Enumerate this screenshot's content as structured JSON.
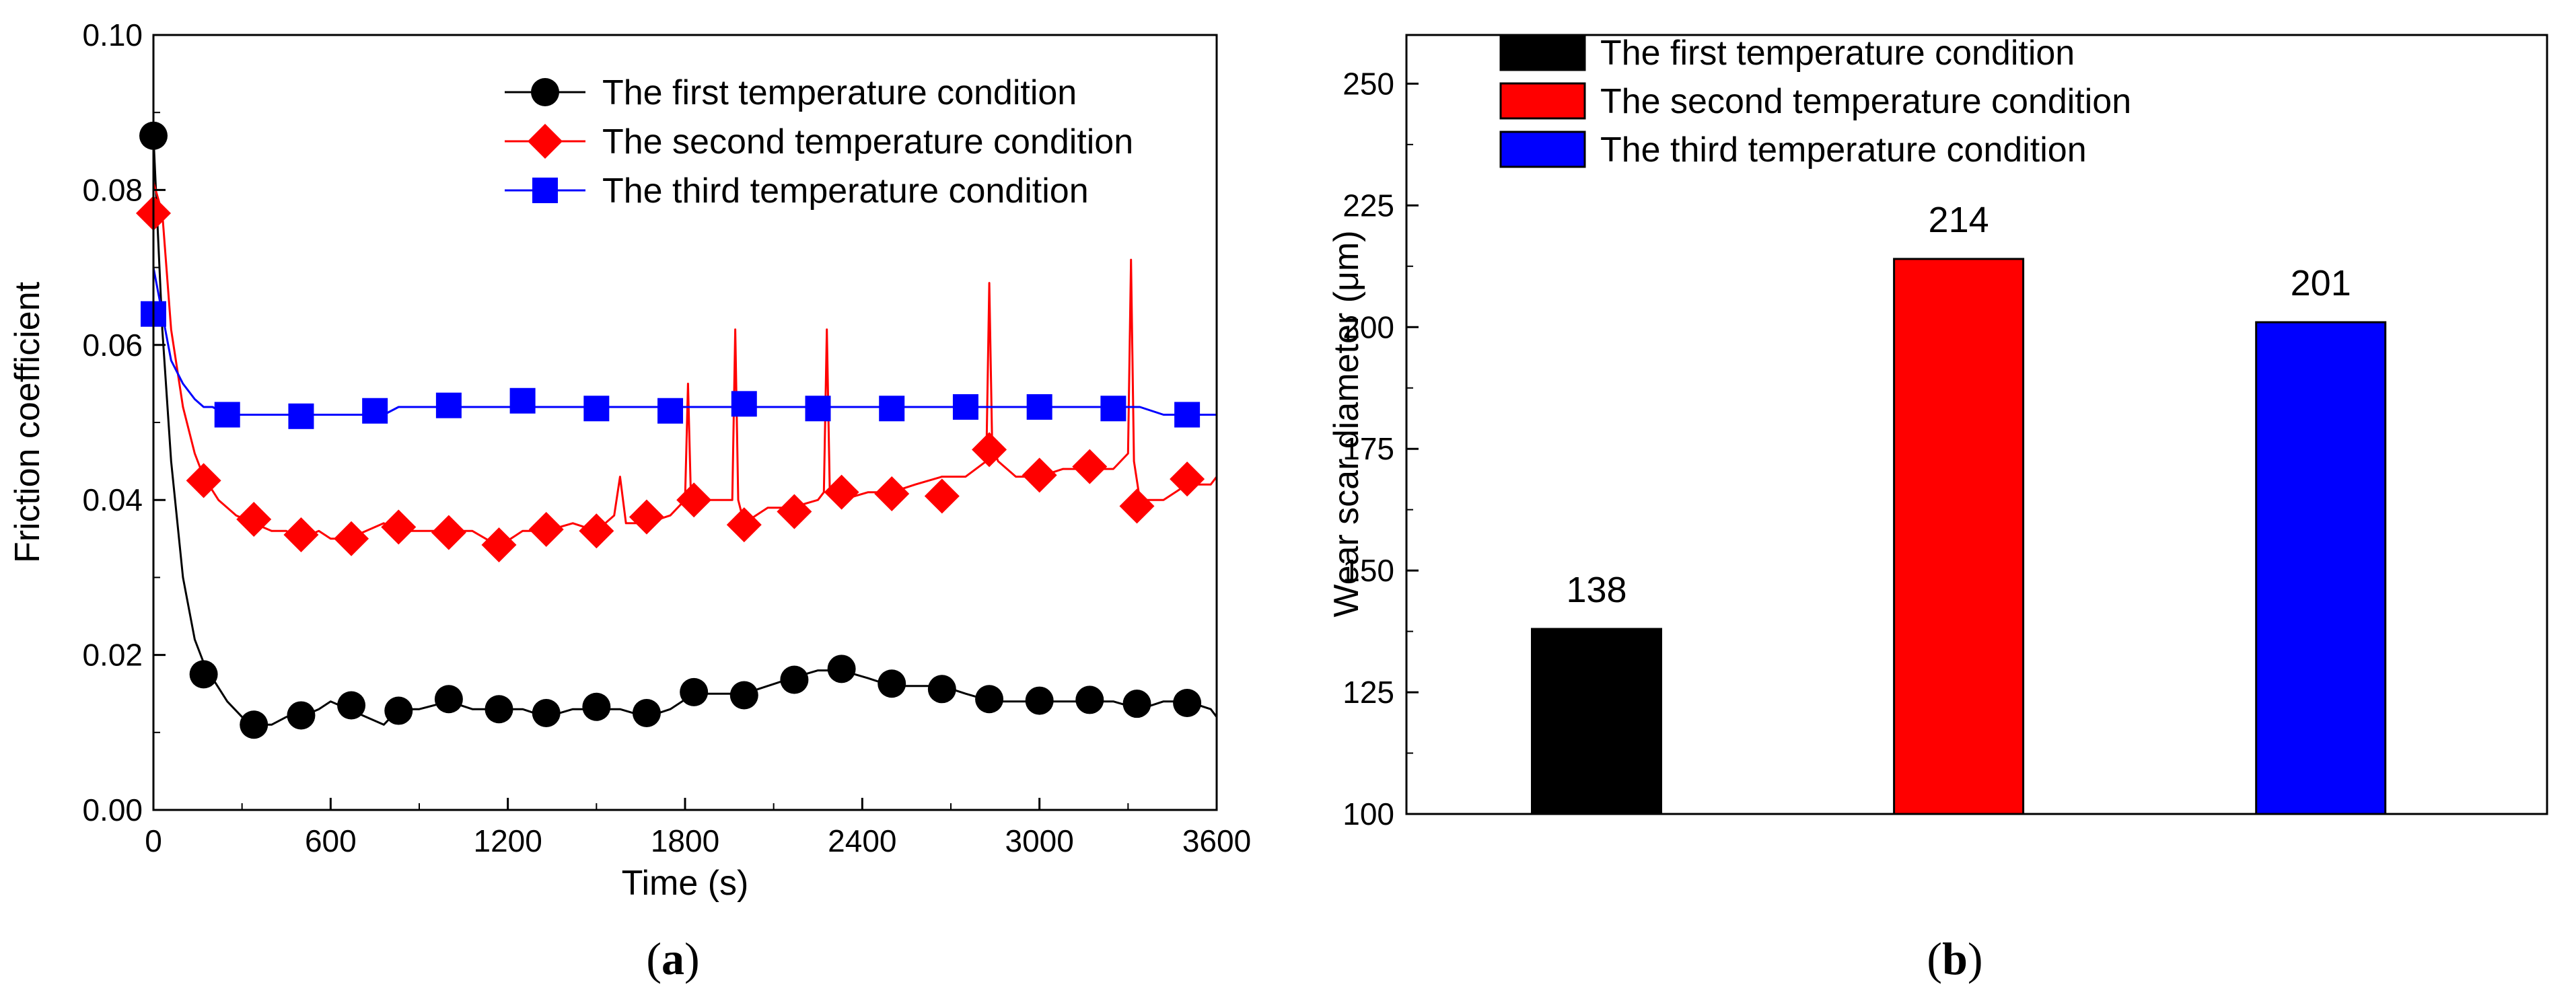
{
  "chart_data": [
    {
      "type": "line",
      "panel_label": "a",
      "xlabel": "Time (s)",
      "ylabel": "Friction coefficient",
      "xlim": [
        0,
        3600
      ],
      "ylim": [
        0.0,
        0.1
      ],
      "xticks": [
        "0",
        "600",
        "1200",
        "1800",
        "2400",
        "3000",
        "3600"
      ],
      "yticks": [
        "0.00",
        "0.02",
        "0.04",
        "0.06",
        "0.08",
        "0.10"
      ],
      "legend_position": "top-right",
      "series": [
        {
          "name": "The first temperature condition",
          "color": "#000000",
          "marker": "circle",
          "x": [
            0,
            30,
            60,
            100,
            140,
            170,
            200,
            250,
            300,
            340,
            400,
            450,
            500,
            560,
            600,
            660,
            720,
            780,
            830,
            900,
            1000,
            1080,
            1170,
            1250,
            1330,
            1420,
            1500,
            1580,
            1670,
            1750,
            1830,
            1900,
            2000,
            2080,
            2160,
            2250,
            2330,
            2420,
            2500,
            2580,
            2670,
            2750,
            2840,
            2920,
            3000,
            3080,
            3170,
            3250,
            3340,
            3420,
            3500,
            3580,
            3600
          ],
          "y": [
            0.087,
            0.062,
            0.045,
            0.03,
            0.022,
            0.019,
            0.017,
            0.014,
            0.012,
            0.011,
            0.011,
            0.012,
            0.012,
            0.013,
            0.014,
            0.013,
            0.012,
            0.011,
            0.013,
            0.013,
            0.014,
            0.013,
            0.013,
            0.013,
            0.012,
            0.013,
            0.013,
            0.013,
            0.012,
            0.013,
            0.015,
            0.015,
            0.015,
            0.016,
            0.017,
            0.018,
            0.018,
            0.017,
            0.016,
            0.016,
            0.016,
            0.015,
            0.014,
            0.014,
            0.014,
            0.014,
            0.014,
            0.014,
            0.013,
            0.014,
            0.014,
            0.013,
            0.012
          ],
          "marker_x": [
            0,
            170,
            340,
            500,
            670,
            830,
            1000,
            1170,
            1330,
            1500,
            1670,
            1830,
            2000,
            2170,
            2330,
            2500,
            2670,
            2830,
            3000,
            3170,
            3330,
            3500
          ],
          "marker_y": [
            0.087,
            0.0175,
            0.011,
            0.0122,
            0.0135,
            0.0128,
            0.0143,
            0.013,
            0.0125,
            0.0133,
            0.0125,
            0.0152,
            0.0148,
            0.0168,
            0.0182,
            0.0163,
            0.0156,
            0.0143,
            0.0141,
            0.0142,
            0.0137,
            0.0138
          ]
        },
        {
          "name": "The second temperature condition",
          "color": "#ff0000",
          "marker": "diamond",
          "x": [
            0,
            30,
            60,
            100,
            140,
            170,
            220,
            280,
            340,
            400,
            450,
            500,
            560,
            600,
            660,
            720,
            780,
            830,
            900,
            1000,
            1080,
            1170,
            1250,
            1330,
            1420,
            1500,
            1560,
            1580,
            1600,
            1670,
            1750,
            1800,
            1810,
            1820,
            1830,
            1900,
            1960,
            1970,
            1980,
            2000,
            2080,
            2160,
            2250,
            2270,
            2280,
            2290,
            2330,
            2420,
            2500,
            2580,
            2670,
            2750,
            2820,
            2830,
            2840,
            2860,
            2920,
            3000,
            3080,
            3170,
            3250,
            3300,
            3310,
            3320,
            3340,
            3420,
            3500,
            3580,
            3600
          ],
          "y": [
            0.081,
            0.077,
            0.062,
            0.052,
            0.046,
            0.043,
            0.04,
            0.038,
            0.037,
            0.036,
            0.036,
            0.035,
            0.036,
            0.035,
            0.035,
            0.036,
            0.037,
            0.036,
            0.036,
            0.036,
            0.036,
            0.034,
            0.036,
            0.036,
            0.037,
            0.036,
            0.038,
            0.043,
            0.037,
            0.037,
            0.038,
            0.04,
            0.055,
            0.04,
            0.04,
            0.04,
            0.04,
            0.062,
            0.04,
            0.037,
            0.039,
            0.039,
            0.04,
            0.041,
            0.062,
            0.041,
            0.04,
            0.041,
            0.041,
            0.042,
            0.043,
            0.043,
            0.045,
            0.068,
            0.047,
            0.045,
            0.043,
            0.043,
            0.044,
            0.044,
            0.044,
            0.046,
            0.071,
            0.045,
            0.04,
            0.04,
            0.042,
            0.042,
            0.043
          ],
          "marker_x": [
            0,
            170,
            340,
            500,
            670,
            830,
            1000,
            1170,
            1330,
            1500,
            1670,
            1830,
            2000,
            2170,
            2330,
            2500,
            2670,
            2830,
            3000,
            3170,
            3330,
            3500
          ],
          "marker_y": [
            0.077,
            0.0425,
            0.0375,
            0.0355,
            0.035,
            0.0365,
            0.0358,
            0.0342,
            0.0362,
            0.036,
            0.0378,
            0.04,
            0.0368,
            0.0385,
            0.041,
            0.0408,
            0.0405,
            0.0465,
            0.0432,
            0.0443,
            0.0392,
            0.0427
          ]
        },
        {
          "name": "The third temperature condition",
          "color": "#0000ff",
          "marker": "square",
          "x": [
            0,
            30,
            60,
            100,
            140,
            170,
            200,
            250,
            300,
            340,
            400,
            450,
            500,
            560,
            600,
            660,
            720,
            780,
            830,
            900,
            1000,
            1080,
            1170,
            1250,
            1330,
            1420,
            1500,
            1580,
            1670,
            1750,
            1830,
            1900,
            2000,
            2080,
            2160,
            2250,
            2330,
            2420,
            2500,
            2580,
            2670,
            2750,
            2840,
            2920,
            3000,
            3080,
            3170,
            3250,
            3340,
            3420,
            3500,
            3580,
            3600
          ],
          "y": [
            0.07,
            0.064,
            0.058,
            0.055,
            0.053,
            0.052,
            0.052,
            0.051,
            0.051,
            0.051,
            0.051,
            0.051,
            0.051,
            0.051,
            0.051,
            0.051,
            0.051,
            0.051,
            0.052,
            0.052,
            0.052,
            0.052,
            0.052,
            0.052,
            0.052,
            0.052,
            0.052,
            0.052,
            0.052,
            0.052,
            0.052,
            0.052,
            0.052,
            0.052,
            0.052,
            0.052,
            0.052,
            0.052,
            0.052,
            0.052,
            0.052,
            0.052,
            0.052,
            0.052,
            0.052,
            0.052,
            0.052,
            0.052,
            0.052,
            0.051,
            0.051,
            0.051,
            0.051
          ],
          "marker_x": [
            0,
            250,
            500,
            750,
            1000,
            1250,
            1500,
            1750,
            2000,
            2250,
            2500,
            2750,
            3000,
            3250,
            3500
          ],
          "marker_y": [
            0.064,
            0.051,
            0.0508,
            0.0515,
            0.0522,
            0.0528,
            0.0518,
            0.0515,
            0.0524,
            0.0518,
            0.0518,
            0.052,
            0.052,
            0.0518,
            0.051
          ]
        }
      ]
    },
    {
      "type": "bar",
      "panel_label": "b",
      "xlabel": "",
      "ylabel": "Wear scar diameter (μm)",
      "ylim": [
        100,
        260
      ],
      "yticks": [
        "100",
        "125",
        "150",
        "175",
        "200",
        "225",
        "250"
      ],
      "legend_position": "top-left",
      "categories": [
        "The first temperature condition",
        "The second temperature condition",
        "The third temperature condition"
      ],
      "values": [
        138,
        214,
        201
      ],
      "data_labels": [
        "138",
        "214",
        "201"
      ],
      "colors": [
        "#000000",
        "#ff0000",
        "#0000ff"
      ]
    }
  ]
}
